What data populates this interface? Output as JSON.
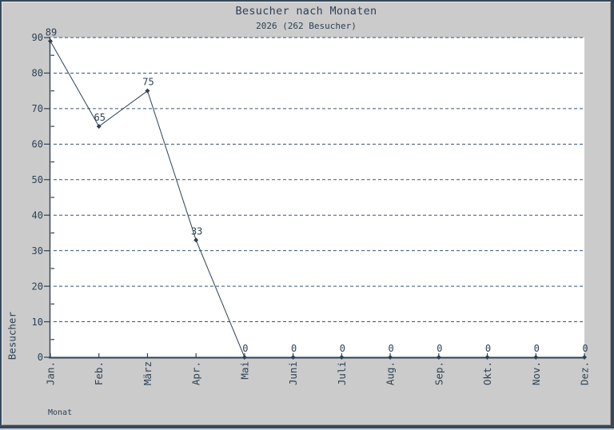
{
  "title": "Besucher nach Monaten",
  "subtitle": "2026 (262 Besucher)",
  "colors": {
    "ink": "#2d4156",
    "grid": "#3a5570",
    "background": "#cbcbcb",
    "plot_background": "#ffffff",
    "frame_border": "#35485a"
  },
  "chart_data": {
    "type": "line",
    "title": "Besucher nach Monaten",
    "subtitle": "2026 (262 Besucher)",
    "year": "2026",
    "total_visitors": 262,
    "xlabel": "Monat",
    "ylabel": "Besucher",
    "categories": [
      "Jan.",
      "Feb.",
      "März",
      "Apr.",
      "Mai",
      "Juni",
      "Juli",
      "Aug.",
      "Sep.",
      "Okt.",
      "Nov.",
      "Dez."
    ],
    "values": [
      89,
      65,
      75,
      33,
      0,
      0,
      0,
      0,
      0,
      0,
      0,
      0
    ],
    "ylim": [
      0,
      90
    ],
    "y_ticks": [
      0,
      10,
      20,
      30,
      40,
      50,
      60,
      70,
      80,
      90
    ],
    "y_minor_step": 5,
    "grid": "horizontal-dashed",
    "legend": "none",
    "marker": "diamond",
    "point_labels": true
  }
}
